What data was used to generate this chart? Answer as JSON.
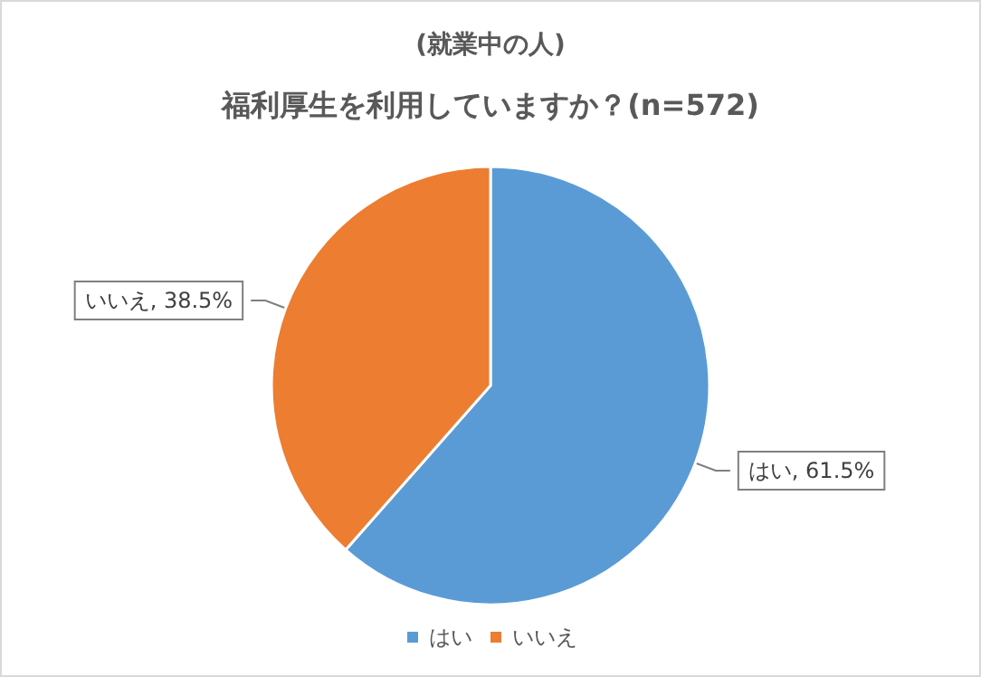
{
  "chart_data": {
    "type": "pie",
    "title": "福利厚生を利用していますか？(n=572)",
    "subtitle": "(就業中の人)",
    "categories": [
      "はい",
      "いいえ"
    ],
    "values": [
      61.5,
      38.5
    ],
    "colors": [
      "#5b9bd5",
      "#ed7d31"
    ],
    "value_labels": [
      "はい, 61.5%",
      "いいえ, 38.5%"
    ],
    "legend": "bottom"
  }
}
